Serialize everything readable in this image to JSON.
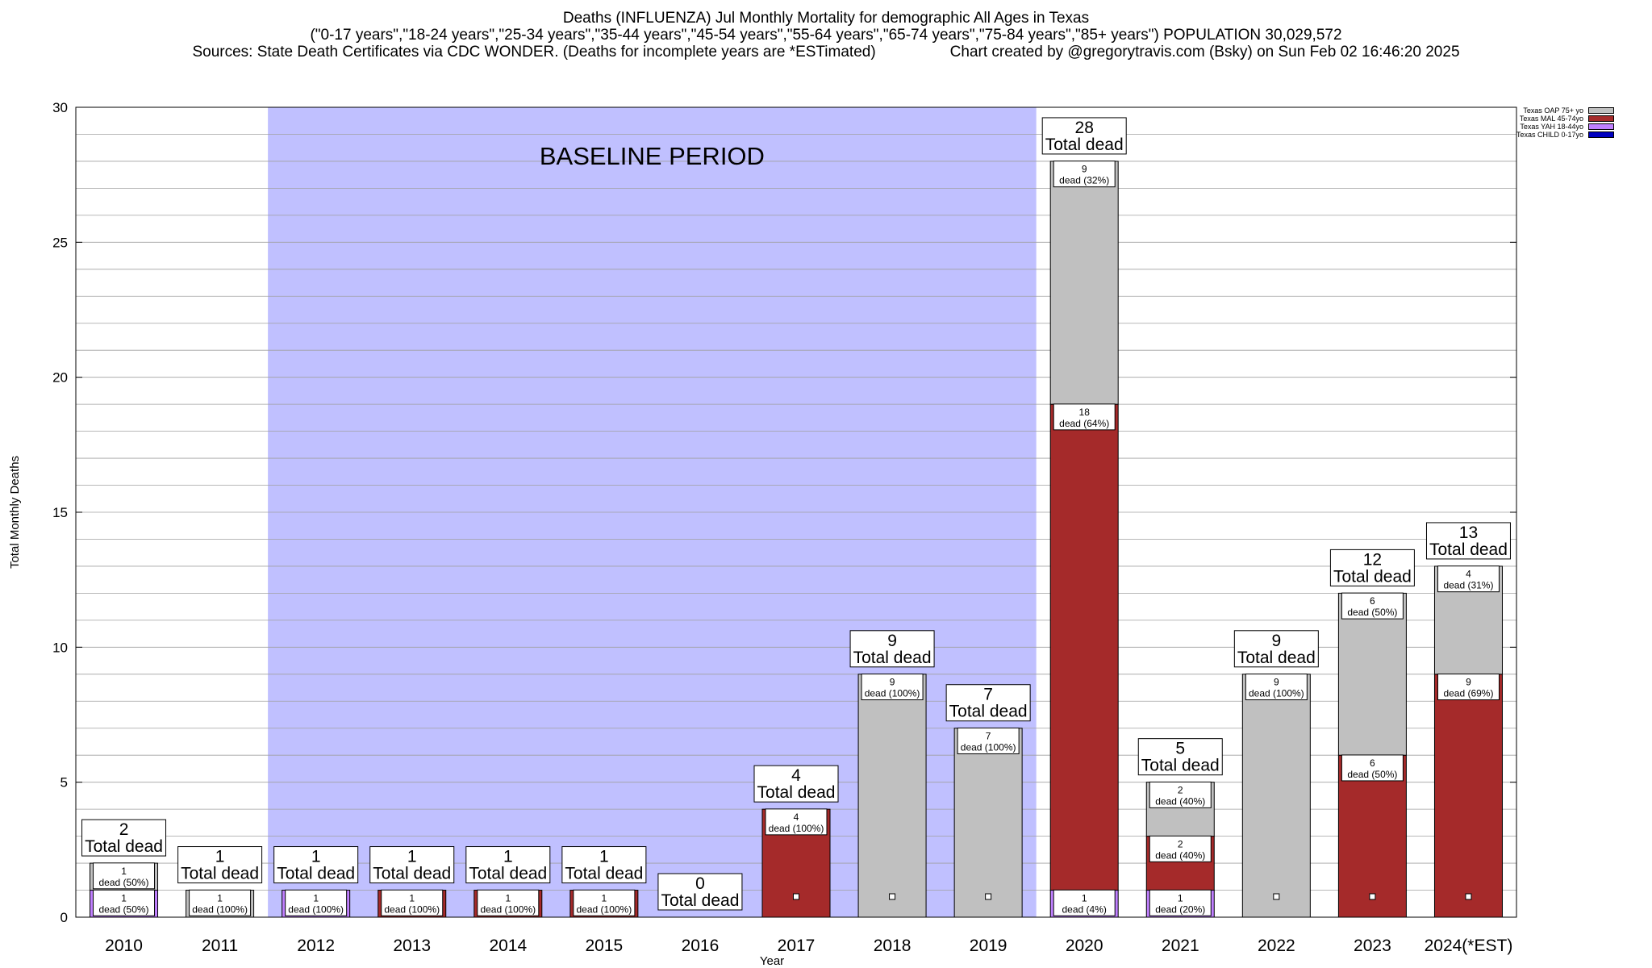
{
  "header": {
    "title": "Deaths (INFLUENZA) Jul Monthly Mortality for demographic All Ages in Texas",
    "subtitle": "(\"0-17 years\",\"18-24 years\",\"25-34 years\",\"35-44 years\",\"45-54 years\",\"55-64 years\",\"65-74 years\",\"75-84 years\",\"85+ years\") POPULATION 30,029,572",
    "sources": "Sources: State Death Certificates via CDC WONDER. (Deaths for incomplete years are *ESTimated)",
    "credit": "Chart created by @gregorytravis.com (Bsky) on Sun Feb 02 16:46:20 2025"
  },
  "legend": [
    {
      "label": "Texas OAP 75+ yo",
      "color": "#c0c0c0"
    },
    {
      "label": "Texas MAL 45-74yo",
      "color": "#a52a2a"
    },
    {
      "label": "Texas YAH 18-44yo",
      "color": "#c080ff"
    },
    {
      "label": "Texas CHILD 0-17yo",
      "color": "#0000c0"
    }
  ],
  "chart_data": {
    "type": "bar",
    "stacked": true,
    "xlabel": "Year",
    "ylabel": "Total Monthly Deaths",
    "ylim": [
      0,
      30
    ],
    "yticks": [
      0,
      5,
      10,
      15,
      20,
      25,
      30
    ],
    "grid": true,
    "legend_position": "top-right",
    "categories": [
      "2010",
      "2011",
      "2012",
      "2013",
      "2014",
      "2015",
      "2016",
      "2017",
      "2018",
      "2019",
      "2020",
      "2021",
      "2022",
      "2023",
      "2024(*EST)"
    ],
    "series": [
      {
        "name": "Texas CHILD 0-17yo",
        "color": "#0000c0",
        "values": [
          0,
          0,
          0,
          0,
          0,
          0,
          0,
          0,
          0,
          0,
          0,
          0,
          0,
          0,
          0
        ]
      },
      {
        "name": "Texas YAH 18-44yo",
        "color": "#c080ff",
        "values": [
          1,
          0,
          1,
          0,
          0,
          0,
          0,
          0,
          0,
          0,
          1,
          1,
          0,
          0,
          0
        ]
      },
      {
        "name": "Texas MAL 45-74yo",
        "color": "#a52a2a",
        "values": [
          0,
          0,
          0,
          1,
          1,
          1,
          0,
          4,
          0,
          0,
          18,
          2,
          0,
          6,
          9
        ]
      },
      {
        "name": "Texas OAP 75+ yo",
        "color": "#c0c0c0",
        "values": [
          1,
          1,
          0,
          0,
          0,
          0,
          0,
          0,
          9,
          7,
          9,
          2,
          9,
          6,
          4
        ]
      }
    ],
    "totals": [
      2,
      1,
      1,
      1,
      1,
      1,
      0,
      4,
      9,
      7,
      28,
      5,
      9,
      12,
      13
    ],
    "total_label": "Total dead",
    "segment_labels": [
      [
        {
          "count": "1",
          "text": "dead (50%)",
          "at": 0.5
        },
        {
          "count": "1",
          "text": "dead (50%)",
          "at": 1.5
        }
      ],
      [
        {
          "count": "1",
          "text": "dead (100%)",
          "at": 0.5
        }
      ],
      [
        {
          "count": "1",
          "text": "dead (100%)",
          "at": 0.5
        }
      ],
      [
        {
          "count": "1",
          "text": "dead (100%)",
          "at": 0.5
        }
      ],
      [
        {
          "count": "1",
          "text": "dead (100%)",
          "at": 0.5
        }
      ],
      [
        {
          "count": "1",
          "text": "dead (100%)",
          "at": 0.5
        }
      ],
      [],
      [
        {
          "count": "4",
          "text": "dead (100%)",
          "at": 3.5
        }
      ],
      [
        {
          "count": "9",
          "text": "dead (100%)",
          "at": 8.5
        }
      ],
      [
        {
          "count": "7",
          "text": "dead (100%)",
          "at": 6.5
        }
      ],
      [
        {
          "count": "1",
          "text": "dead (4%)",
          "at": 0.5
        },
        {
          "count": "18",
          "text": "dead (64%)",
          "at": 18.5
        },
        {
          "count": "9",
          "text": "dead (32%)",
          "at": 27.5
        }
      ],
      [
        {
          "count": "1",
          "text": "dead (20%)",
          "at": 0.5
        },
        {
          "count": "2",
          "text": "dead (40%)",
          "at": 2.5
        },
        {
          "count": "2",
          "text": "dead (40%)",
          "at": 4.5
        }
      ],
      [
        {
          "count": "9",
          "text": "dead (100%)",
          "at": 8.5
        }
      ],
      [
        {
          "count": "6",
          "text": "dead (50%)",
          "at": 5.5
        },
        {
          "count": "6",
          "text": "dead (50%)",
          "at": 11.5
        }
      ],
      [
        {
          "count": "9",
          "text": "dead (69%)",
          "at": 8.5
        },
        {
          "count": "4",
          "text": "dead (31%)",
          "at": 12.5
        }
      ]
    ],
    "baseline": {
      "label": "BASELINE PERIOD",
      "from": "2012",
      "to": "2019",
      "color": "#c0c0ff"
    }
  }
}
